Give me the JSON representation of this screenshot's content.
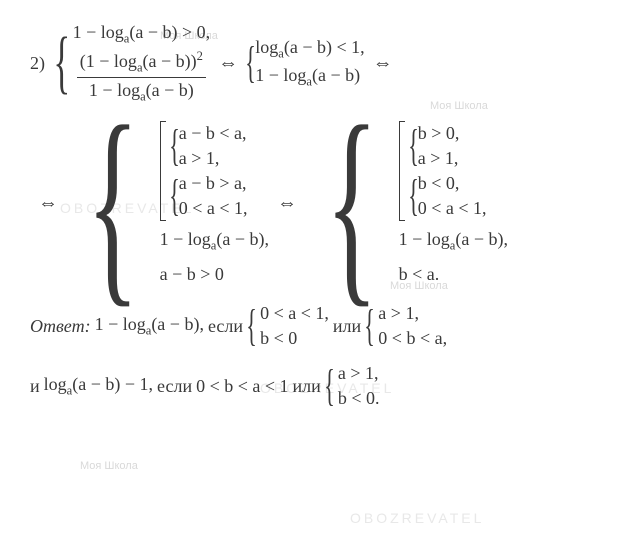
{
  "colors": {
    "text": "#3a3a3a",
    "bg": "#ffffff",
    "watermark": "#d9d9d9"
  },
  "fontsize_pt": 14,
  "line1": {
    "label": "2)",
    "sys_top": "1 − logₐ(a − b) > 0,",
    "frac_num": "(1 − logₐ(a − b))²",
    "frac_den": "1 − logₐ(a − b)",
    "iff": "⇔",
    "rhs1": "logₐ(a − b) < 1,",
    "rhs2": "1 − logₐ(a − b)"
  },
  "line2": {
    "iff": "⇔",
    "left_a1": "a − b < a,",
    "left_a2": "a > 1,",
    "left_b1": "a − b > a,",
    "left_b2": "0 < a < 1,",
    "left_c1": "1 − logₐ(a − b),",
    "left_c2": "a − b > 0",
    "right_a1": "b > 0,",
    "right_a2": "a > 1,",
    "right_b1": "b < 0,",
    "right_b2": "0 < a < 1,",
    "right_c1": "1 − logₐ(a − b),",
    "right_c2": "b < a."
  },
  "answer": {
    "label": "Ответ:",
    "expr1": "1 − logₐ(a − b),",
    "if1": "если",
    "c1a": "0 < a < 1,",
    "c1b": "b < 0",
    "or1": "или",
    "c2a": "a > 1,",
    "c2b": "0 < b < a,",
    "and": "и",
    "expr2": "logₐ(a − b) − 1,",
    "if2": "если",
    "c3": "0 < b < a < 1",
    "or2": "или",
    "c4a": "a > 1,",
    "c4b": "b < 0."
  },
  "watermarks": [
    "Моя Школа",
    "OBOZREVATEL"
  ]
}
